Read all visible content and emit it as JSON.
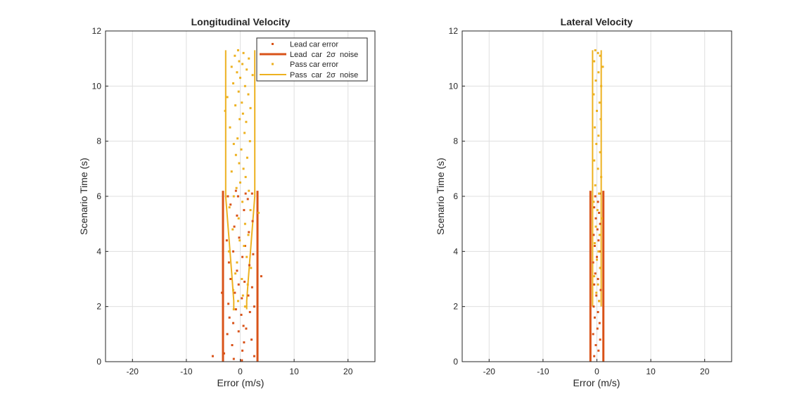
{
  "figure": {
    "colors": {
      "lead": "#D95319",
      "pass": "#EDB120",
      "axis": "#262626",
      "grid": "#DFDFDF"
    }
  },
  "chart_data": [
    {
      "type": "scatter",
      "title": "Longitudinal Velocity",
      "xlabel": "Error (m/s)",
      "ylabel": "Scenario Time (s)",
      "xlim": [
        -25,
        25
      ],
      "ylim": [
        0,
        12
      ],
      "xticks": [
        -20,
        -10,
        0,
        10,
        20
      ],
      "yticks": [
        0,
        2,
        4,
        6,
        8,
        10,
        12
      ],
      "xtick_labels": [
        "-20",
        "-10",
        "0",
        "10",
        "20"
      ],
      "ytick_labels": [
        "0",
        "2",
        "4",
        "6",
        "8",
        "10",
        "12"
      ],
      "grid": true,
      "legend": {
        "location": "top-right",
        "entries": [
          "Lead car error",
          "Lead  car  2σ  noise",
          "Pass car error",
          "Pass  car  2σ  noise"
        ]
      },
      "series": [
        {
          "name": "Lead car error",
          "kind": "points",
          "color": "#D95319",
          "points": [
            [
              -5.1,
              0.2
            ],
            [
              -3.0,
              0.3
            ],
            [
              -1.2,
              0.1
            ],
            [
              0.3,
              0.05
            ],
            [
              0.4,
              0.4
            ],
            [
              2.6,
              0.2
            ],
            [
              -1.5,
              0.6
            ],
            [
              0.7,
              0.7
            ],
            [
              2.1,
              0.8
            ],
            [
              -2.4,
              1.0
            ],
            [
              -0.3,
              1.1
            ],
            [
              1.1,
              1.2
            ],
            [
              -1.3,
              1.4
            ],
            [
              0.6,
              1.3
            ],
            [
              -2.0,
              1.6
            ],
            [
              0.2,
              1.7
            ],
            [
              1.8,
              1.8
            ],
            [
              -0.8,
              1.9
            ],
            [
              2.6,
              2.0
            ],
            [
              -2.2,
              2.1
            ],
            [
              0.3,
              2.3
            ],
            [
              -1.0,
              2.5
            ],
            [
              1.5,
              2.4
            ],
            [
              -3.4,
              2.5
            ],
            [
              2.2,
              2.7
            ],
            [
              -0.3,
              2.8
            ],
            [
              0.8,
              2.9
            ],
            [
              -1.8,
              3.0
            ],
            [
              3.9,
              3.1
            ],
            [
              -0.6,
              3.3
            ],
            [
              1.7,
              3.5
            ],
            [
              -2.1,
              3.6
            ],
            [
              0.4,
              3.8
            ],
            [
              2.4,
              3.9
            ],
            [
              -1.3,
              4.0
            ],
            [
              0.9,
              4.2
            ],
            [
              -2.5,
              4.4
            ],
            [
              -0.2,
              4.5
            ],
            [
              1.6,
              4.7
            ],
            [
              -1.1,
              4.9
            ],
            [
              2.3,
              5.1
            ],
            [
              -0.6,
              5.3
            ],
            [
              0.7,
              5.5
            ],
            [
              -1.8,
              5.7
            ],
            [
              1.4,
              5.9
            ],
            [
              -0.4,
              6.0
            ],
            [
              -0.8,
              6.2
            ],
            [
              1.0,
              6.1
            ],
            [
              2.2,
              6.1
            ],
            [
              -2.3,
              6.0
            ]
          ]
        },
        {
          "name": "Lead  car  2σ  noise",
          "kind": "band",
          "color": "#D95319",
          "y": [
            0,
            6.2
          ],
          "left": [
            -3.2,
            -3.2
          ],
          "right": [
            3.2,
            3.2
          ]
        },
        {
          "name": "Pass car error",
          "kind": "points",
          "color": "#EDB120",
          "points": [
            [
              -0.4,
              11.3
            ],
            [
              0.6,
              11.2
            ],
            [
              -1.0,
              11.1
            ],
            [
              1.6,
              11.0
            ],
            [
              -0.2,
              10.9
            ],
            [
              0.4,
              10.8
            ],
            [
              -1.6,
              10.7
            ],
            [
              1.2,
              10.6
            ],
            [
              -0.6,
              10.5
            ],
            [
              2.3,
              10.4
            ],
            [
              0.0,
              10.3
            ],
            [
              -1.3,
              10.1
            ],
            [
              0.9,
              10.0
            ],
            [
              -0.3,
              9.8
            ],
            [
              1.5,
              9.7
            ],
            [
              -2.4,
              9.6
            ],
            [
              0.3,
              9.4
            ],
            [
              -0.9,
              9.3
            ],
            [
              1.9,
              9.2
            ],
            [
              -2.8,
              9.1
            ],
            [
              0.5,
              9.0
            ],
            [
              -0.1,
              8.8
            ],
            [
              1.1,
              8.7
            ],
            [
              -1.9,
              8.5
            ],
            [
              0.8,
              8.3
            ],
            [
              -0.5,
              8.1
            ],
            [
              1.8,
              8.0
            ],
            [
              -1.2,
              7.9
            ],
            [
              0.2,
              7.7
            ],
            [
              -0.8,
              7.5
            ],
            [
              1.3,
              7.4
            ],
            [
              -0.2,
              7.2
            ],
            [
              0.6,
              7.0
            ],
            [
              -1.6,
              6.9
            ],
            [
              1.0,
              6.7
            ],
            [
              0.0,
              6.5
            ],
            [
              -0.7,
              6.3
            ],
            [
              1.6,
              6.2
            ],
            [
              -1.2,
              6.0
            ],
            [
              0.4,
              5.8
            ],
            [
              -2.0,
              5.6
            ],
            [
              1.9,
              5.5
            ],
            [
              3.4,
              5.4
            ],
            [
              -0.3,
              5.2
            ],
            [
              0.9,
              5.0
            ],
            [
              -1.4,
              4.8
            ],
            [
              1.5,
              4.6
            ],
            [
              -0.1,
              4.4
            ],
            [
              0.7,
              4.2
            ],
            [
              -2.1,
              4.0
            ],
            [
              1.2,
              3.8
            ],
            [
              -0.6,
              3.6
            ],
            [
              2.0,
              3.4
            ],
            [
              -0.9,
              3.2
            ],
            [
              0.3,
              3.0
            ],
            [
              1.4,
              2.8
            ],
            [
              -1.3,
              2.6
            ],
            [
              0.5,
              2.4
            ],
            [
              -0.4,
              2.2
            ],
            [
              0.9,
              2.0
            ],
            [
              -1.2,
              1.9
            ]
          ]
        },
        {
          "name": "Pass  car  2σ  noise",
          "kind": "band",
          "color": "#EDB120",
          "y": [
            11.3,
            9,
            7,
            6,
            5,
            4,
            3,
            2.2,
            1.9
          ],
          "left": [
            -2.7,
            -2.7,
            -2.7,
            -2.7,
            -2.3,
            -1.9,
            -1.5,
            -1.2,
            -1.2
          ],
          "right": [
            2.7,
            2.7,
            2.7,
            2.7,
            2.3,
            1.9,
            1.5,
            1.2,
            1.2
          ]
        }
      ]
    },
    {
      "type": "scatter",
      "title": "Lateral Velocity",
      "xlabel": "Error (m/s)",
      "ylabel": "Scenario Time (s)",
      "xlim": [
        -25,
        25
      ],
      "ylim": [
        0,
        12
      ],
      "xticks": [
        -20,
        -10,
        0,
        10,
        20
      ],
      "yticks": [
        0,
        2,
        4,
        6,
        8,
        10,
        12
      ],
      "xtick_labels": [
        "-20",
        "-10",
        "0",
        "10",
        "20"
      ],
      "ytick_labels": [
        "0",
        "2",
        "4",
        "6",
        "8",
        "10",
        "12"
      ],
      "grid": true,
      "series": [
        {
          "name": "Lead car error",
          "kind": "points",
          "color": "#D95319",
          "points": [
            [
              -0.5,
              0.2
            ],
            [
              0.3,
              0.4
            ],
            [
              -0.2,
              0.6
            ],
            [
              0.6,
              0.8
            ],
            [
              -0.7,
              1.0
            ],
            [
              0.1,
              1.2
            ],
            [
              0.5,
              1.4
            ],
            [
              -0.4,
              1.6
            ],
            [
              0.2,
              1.8
            ],
            [
              -0.6,
              2.0
            ],
            [
              0.4,
              2.2
            ],
            [
              -0.1,
              2.4
            ],
            [
              0.7,
              2.6
            ],
            [
              -0.5,
              2.8
            ],
            [
              0.2,
              3.0
            ],
            [
              -0.3,
              3.2
            ],
            [
              0.6,
              3.4
            ],
            [
              -0.7,
              3.6
            ],
            [
              0.0,
              3.8
            ],
            [
              0.5,
              4.0
            ],
            [
              -0.4,
              4.2
            ],
            [
              0.3,
              4.4
            ],
            [
              -0.6,
              4.6
            ],
            [
              0.1,
              4.8
            ],
            [
              0.6,
              5.0
            ],
            [
              -0.2,
              5.2
            ],
            [
              0.4,
              5.4
            ],
            [
              -0.5,
              5.6
            ],
            [
              0.2,
              5.8
            ],
            [
              -0.3,
              6.0
            ],
            [
              0.5,
              6.1
            ]
          ]
        },
        {
          "name": "Lead  car  2σ  noise",
          "kind": "band",
          "color": "#D95319",
          "y": [
            0,
            6.2
          ],
          "left": [
            -1.2,
            -1.2
          ],
          "right": [
            1.2,
            1.2
          ]
        },
        {
          "name": "Pass car error",
          "kind": "points",
          "color": "#EDB120",
          "points": [
            [
              -0.3,
              11.3
            ],
            [
              0.2,
              11.2
            ],
            [
              0.6,
              11.1
            ],
            [
              -0.5,
              10.9
            ],
            [
              1.1,
              10.7
            ],
            [
              0.3,
              10.5
            ],
            [
              -0.2,
              10.2
            ],
            [
              0.8,
              10.0
            ],
            [
              -0.6,
              9.7
            ],
            [
              0.5,
              9.4
            ],
            [
              0.0,
              9.1
            ],
            [
              0.7,
              8.8
            ],
            [
              -0.4,
              8.5
            ],
            [
              0.3,
              8.2
            ],
            [
              -0.1,
              7.9
            ],
            [
              0.6,
              7.6
            ],
            [
              -0.5,
              7.3
            ],
            [
              0.2,
              7.0
            ],
            [
              0.8,
              6.7
            ],
            [
              -0.3,
              6.4
            ],
            [
              0.4,
              6.1
            ],
            [
              -0.6,
              5.8
            ],
            [
              0.1,
              5.5
            ],
            [
              0.9,
              5.2
            ],
            [
              -0.2,
              4.9
            ],
            [
              0.5,
              4.6
            ],
            [
              -0.4,
              4.3
            ],
            [
              0.3,
              4.0
            ],
            [
              0.0,
              3.7
            ],
            [
              0.6,
              3.4
            ],
            [
              -0.5,
              3.1
            ],
            [
              0.2,
              2.8
            ],
            [
              -0.1,
              2.5
            ],
            [
              0.4,
              2.2
            ]
          ]
        },
        {
          "name": "Pass  car  2σ  noise",
          "kind": "band",
          "color": "#EDB120",
          "y": [
            11.3,
            2.0
          ],
          "left": [
            -0.8,
            -0.8
          ],
          "right": [
            0.8,
            0.8
          ]
        }
      ]
    }
  ]
}
